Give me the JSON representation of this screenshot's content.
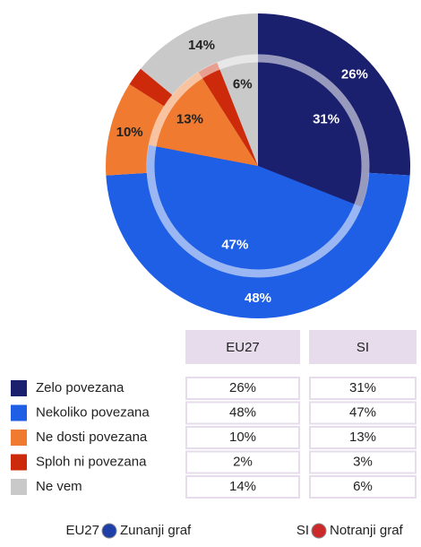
{
  "chart_data": {
    "type": "pie",
    "categories": [
      "Zelo povezana",
      "Nekoliko povezana",
      "Ne dosti povezana",
      "Sploh ni povezana",
      "Ne vem"
    ],
    "colors": [
      "#1a1f6e",
      "#1f5fe6",
      "#f07b30",
      "#cc2a0a",
      "#c9c9c9"
    ],
    "series": [
      {
        "name": "EU27",
        "values": [
          26,
          48,
          10,
          2,
          14
        ],
        "value_labels": [
          "26%",
          "48%",
          "10%",
          "2%",
          "14%"
        ]
      },
      {
        "name": "SI",
        "values": [
          31,
          47,
          13,
          3,
          6
        ],
        "value_labels": [
          "31%",
          "47%",
          "13%",
          "3%",
          "6%"
        ]
      }
    ],
    "footer": [
      {
        "series": "EU27",
        "text": "Zunanji graf"
      },
      {
        "series": "SI",
        "text": "Notranji graf"
      }
    ]
  }
}
